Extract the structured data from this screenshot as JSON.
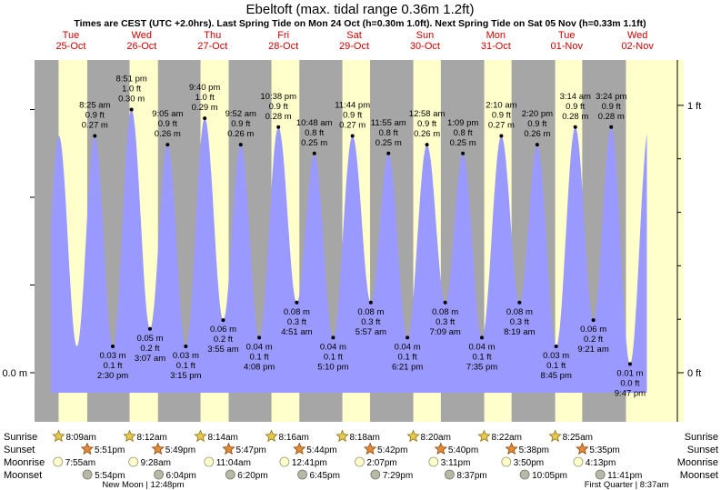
{
  "chart_data": {
    "type": "area",
    "title": "Ebeltoft (max. tidal range 0.36m 1.2ft)",
    "subtitle": "Times are CEST (UTC +2.0hrs). Last Spring Tide on Mon 24 Oct (h=0.30m 1.0ft). Next Spring Tide on Sat 05 Nov (h=0.33m 1.1ft)",
    "y_left_label": "0.0 m",
    "y_right_labels": [
      "1 ft",
      "0 ft"
    ],
    "days": [
      {
        "dow": "Tue",
        "date": "25-Oct"
      },
      {
        "dow": "Wed",
        "date": "26-Oct"
      },
      {
        "dow": "Thu",
        "date": "27-Oct"
      },
      {
        "dow": "Fri",
        "date": "28-Oct"
      },
      {
        "dow": "Sat",
        "date": "29-Oct"
      },
      {
        "dow": "Sun",
        "date": "30-Oct"
      },
      {
        "dow": "Mon",
        "date": "31-Oct"
      },
      {
        "dow": "Tue",
        "date": "01-Nov"
      },
      {
        "dow": "Wed",
        "date": "02-Nov"
      }
    ],
    "tides": [
      {
        "type": "high",
        "time": "8:25 am",
        "t": 20.42,
        "ft": "0.9 ft",
        "m": "0.27 m"
      },
      {
        "type": "low",
        "time": "2:30 pm",
        "t": 26.5,
        "ft": "0.1 ft",
        "m": "0.03 m"
      },
      {
        "type": "high",
        "time": "8:51 pm",
        "t": 32.85,
        "ft": "1.0 ft",
        "m": "0.30 m"
      },
      {
        "type": "low",
        "time": "3:07 am",
        "t": 39.12,
        "ft": "0.2 ft",
        "m": "0.05 m"
      },
      {
        "type": "high",
        "time": "9:05 am",
        "t": 45.08,
        "ft": "0.9 ft",
        "m": "0.26 m"
      },
      {
        "type": "low",
        "time": "3:15 pm",
        "t": 51.25,
        "ft": "0.1 ft",
        "m": "0.03 m"
      },
      {
        "type": "high",
        "time": "9:40 pm",
        "t": 57.67,
        "ft": "1.0 ft",
        "m": "0.29 m"
      },
      {
        "type": "low",
        "time": "3:55 am",
        "t": 63.92,
        "ft": "0.2 ft",
        "m": "0.06 m"
      },
      {
        "type": "high",
        "time": "9:52 am",
        "t": 69.87,
        "ft": "0.9 ft",
        "m": "0.26 m"
      },
      {
        "type": "low",
        "time": "4:08 pm",
        "t": 76.13,
        "ft": "0.1 ft",
        "m": "0.04 m"
      },
      {
        "type": "high",
        "time": "10:38 pm",
        "t": 82.63,
        "ft": "0.9 ft",
        "m": "0.28 m"
      },
      {
        "type": "low",
        "time": "4:51 am",
        "t": 88.85,
        "ft": "0.3 ft",
        "m": "0.08 m"
      },
      {
        "type": "high",
        "time": "10:48 am",
        "t": 94.8,
        "ft": "0.8 ft",
        "m": "0.25 m"
      },
      {
        "type": "low",
        "time": "5:10 pm",
        "t": 101.17,
        "ft": "0.1 ft",
        "m": "0.04 m"
      },
      {
        "type": "high",
        "time": "11:44 pm",
        "t": 107.73,
        "ft": "0.9 ft",
        "m": "0.27 m"
      },
      {
        "type": "low",
        "time": "5:57 am",
        "t": 113.95,
        "ft": "0.3 ft",
        "m": "0.08 m"
      },
      {
        "type": "high",
        "time": "11:55 am",
        "t": 119.92,
        "ft": "0.8 ft",
        "m": "0.25 m"
      },
      {
        "type": "low",
        "time": "6:21 pm",
        "t": 126.35,
        "ft": "0.1 ft",
        "m": "0.04 m"
      },
      {
        "type": "high",
        "time": "12:58 am",
        "t": 132.97,
        "ft": "0.9 ft",
        "m": "0.26 m"
      },
      {
        "type": "low",
        "time": "7:09 am",
        "t": 139.15,
        "ft": "0.3 ft",
        "m": "0.08 m"
      },
      {
        "type": "high",
        "time": "1:09 pm",
        "t": 145.15,
        "ft": "0.8 ft",
        "m": "0.25 m"
      },
      {
        "type": "low",
        "time": "7:35 pm",
        "t": 151.58,
        "ft": "0.1 ft",
        "m": "0.04 m"
      },
      {
        "type": "high",
        "time": "2:10 am",
        "t": 158.17,
        "ft": "0.9 ft",
        "m": "0.27 m"
      },
      {
        "type": "low",
        "time": "8:19 am",
        "t": 164.32,
        "ft": "0.3 ft",
        "m": "0.08 m"
      },
      {
        "type": "high",
        "time": "2:20 pm",
        "t": 170.33,
        "ft": "0.9 ft",
        "m": "0.26 m"
      },
      {
        "type": "low",
        "time": "8:45 pm",
        "t": 176.75,
        "ft": "0.1 ft",
        "m": "0.03 m"
      },
      {
        "type": "high",
        "time": "3:14 am",
        "t": 183.23,
        "ft": "0.9 ft",
        "m": "0.28 m"
      },
      {
        "type": "low",
        "time": "9:21 am",
        "t": 189.35,
        "ft": "0.2 ft",
        "m": "0.06 m"
      },
      {
        "type": "high",
        "time": "3:24 pm",
        "t": 195.4,
        "ft": "0.9 ft",
        "m": "0.28 m"
      },
      {
        "type": "low",
        "time": "9:47 pm",
        "t": 201.78,
        "ft": "0.0 ft",
        "m": "0.01 m"
      }
    ],
    "sun": [
      {
        "rise": "8:09am",
        "set": "5:51pm"
      },
      {
        "rise": "8:12am",
        "set": "5:49pm"
      },
      {
        "rise": "8:14am",
        "set": "5:47pm"
      },
      {
        "rise": "8:16am",
        "set": "5:44pm"
      },
      {
        "rise": "8:18am",
        "set": "5:42pm"
      },
      {
        "rise": "8:20am",
        "set": "5:40pm"
      },
      {
        "rise": "8:22am",
        "set": "5:38pm"
      },
      {
        "rise": "8:25am",
        "set": "5:35pm"
      }
    ],
    "moon": [
      {
        "rise": "7:55am",
        "set": "5:54pm"
      },
      {
        "rise": "9:28am",
        "set": "6:04pm"
      },
      {
        "rise": "11:04am",
        "set": "6:20pm"
      },
      {
        "rise": "12:41pm",
        "set": "6:45pm"
      },
      {
        "rise": "2:07pm",
        "set": "7:29pm"
      },
      {
        "rise": "3:11pm",
        "set": "8:37pm"
      },
      {
        "rise": "3:50pm",
        "set": "10:05pm"
      },
      {
        "rise": "4:13pm",
        "set": "11:41pm"
      }
    ],
    "row_labels": {
      "sunrise": "Sunrise",
      "sunset": "Sunset",
      "moonrise": "Moonrise",
      "moonset": "Moonset"
    },
    "moon_phases": [
      {
        "label": "New Moon | 12:48pm",
        "t": 36.8
      },
      {
        "label": "First Quarter | 8:37am",
        "t": 200.6
      }
    ],
    "colors": {
      "night": "#a6a6a6",
      "day": "#ffffcc",
      "water": "#9999ff",
      "weekday": "#cc0000"
    }
  }
}
